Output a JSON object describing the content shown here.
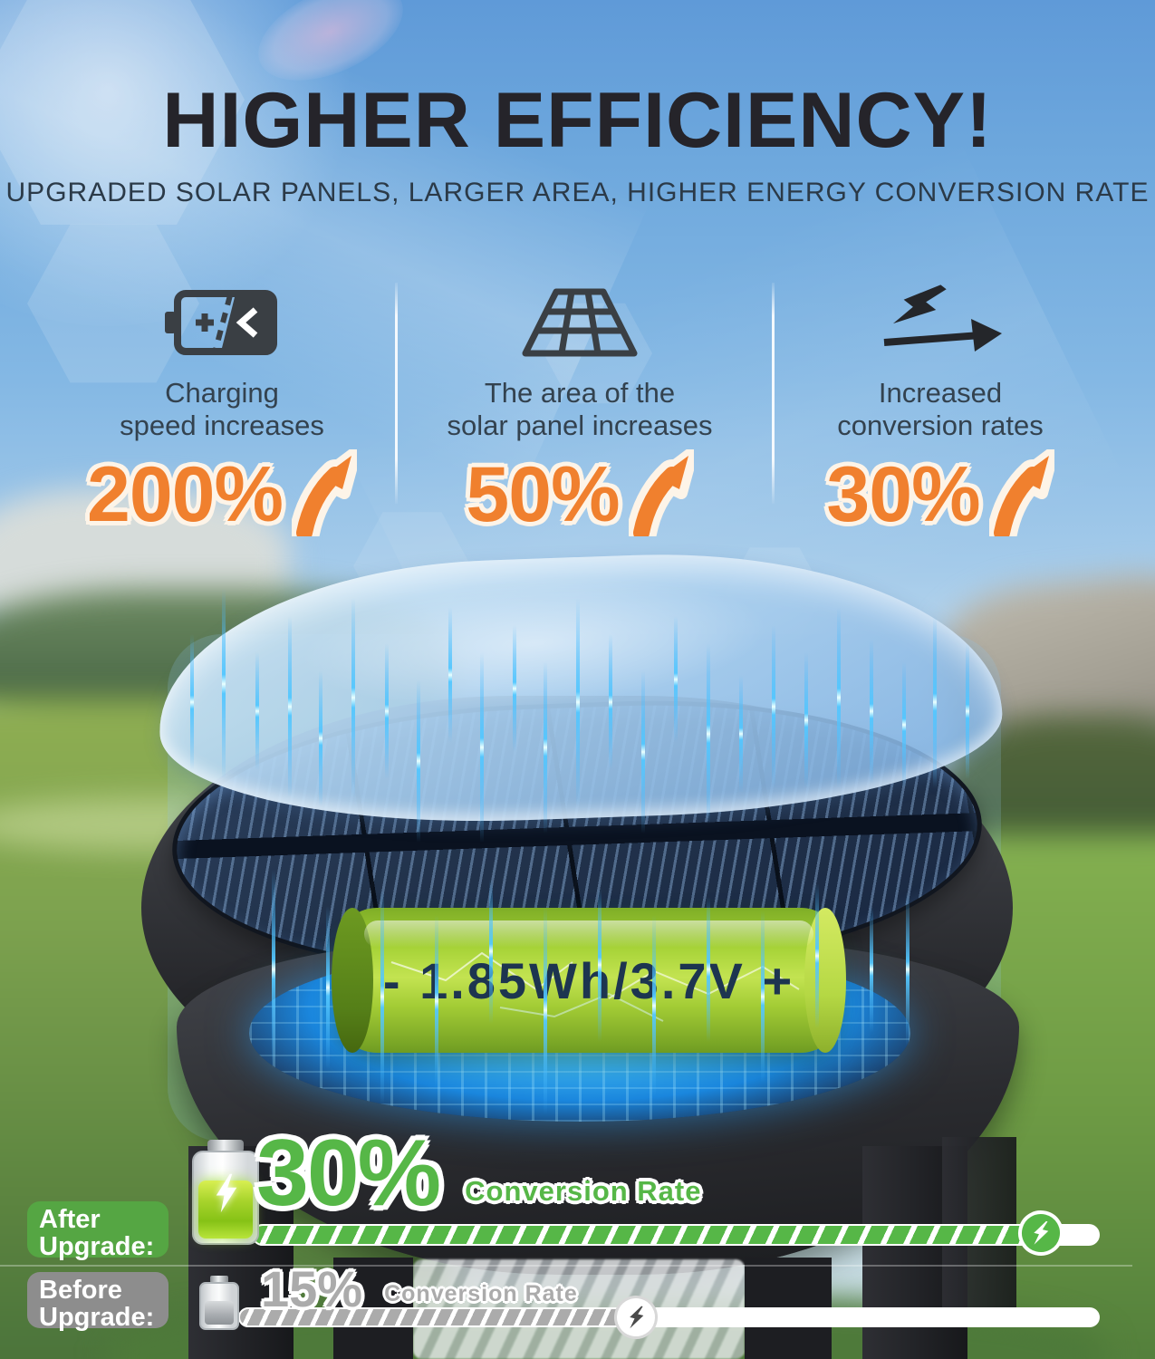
{
  "header": {
    "title": "HIGHER EFFICIENCY!",
    "subtitle": "UPGRADED SOLAR PANELS, LARGER AREA, HIGHER ENERGY CONVERSION RATE"
  },
  "features": [
    {
      "icon": "charging-battery-icon",
      "line1": "Charging",
      "line2": "speed increases",
      "percent": "200%",
      "trend": "up"
    },
    {
      "icon": "solar-panel-icon",
      "line1": "The area of the",
      "line2": "solar panel increases",
      "percent": "50%",
      "trend": "up"
    },
    {
      "icon": "lightning-conversion-icon",
      "line1": "Increased",
      "line2": "conversion rates",
      "percent": "30%",
      "trend": "up"
    }
  ],
  "product": {
    "battery_label": "- 1.85Wh/3.7V +"
  },
  "comparison": {
    "after": {
      "badge_line1": "After",
      "badge_line2": "Upgrade:",
      "percent": "30%",
      "caption": "Conversion Rate",
      "bar_fill_pct": 91
    },
    "before": {
      "badge_line1": "Before",
      "badge_line2": "Upgrade:",
      "percent": "15%",
      "caption": "Conversion Rate",
      "bar_fill_pct": 46
    }
  },
  "colors": {
    "accent-orange": "#f0802e",
    "accent-green": "#56b747",
    "badge-green": "#55a643",
    "badge-gray": "#8d8d8d",
    "bar-gray": "#ababab"
  }
}
